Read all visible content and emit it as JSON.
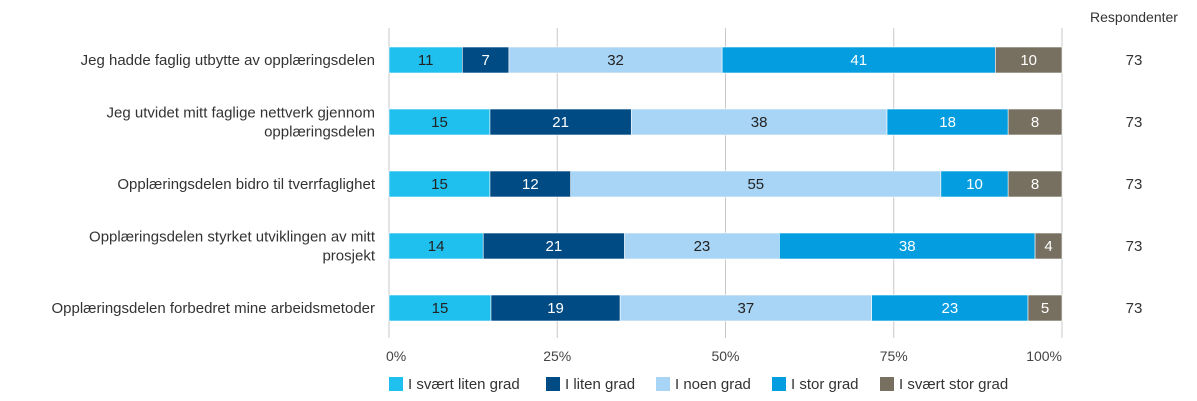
{
  "chart_data": {
    "type": "bar",
    "orientation": "horizontal",
    "stacked": true,
    "normalized_percent": true,
    "categories": [
      [
        "Jeg hadde faglig utbytte av opplæringsdelen"
      ],
      [
        "Jeg utvidet mitt faglige nettverk gjennom",
        "opplæringsdelen"
      ],
      [
        "Opplæringsdelen bidro til tverrfaglighet"
      ],
      [
        "Opplæringsdelen styrket utviklingen av mitt",
        "prosjekt"
      ],
      [
        "Opplæringsdelen forbedret mine arbeidsmetoder"
      ]
    ],
    "series": [
      {
        "name": "I svært liten grad",
        "color": "#1fbfee",
        "label_color": "#222222",
        "values": [
          11,
          15,
          15,
          14,
          15
        ]
      },
      {
        "name": "I liten grad",
        "color": "#004b84",
        "label_color": "#ffffff",
        "values": [
          7,
          21,
          12,
          21,
          19
        ]
      },
      {
        "name": "I noen grad",
        "color": "#a8d4f5",
        "label_color": "#222222",
        "values": [
          32,
          38,
          55,
          23,
          37
        ]
      },
      {
        "name": "I stor grad",
        "color": "#049ee0",
        "label_color": "#ffffff",
        "values": [
          41,
          18,
          10,
          38,
          23
        ]
      },
      {
        "name": "I svært stor grad",
        "color": "#777060",
        "label_color": "#ffffff",
        "values": [
          10,
          8,
          8,
          4,
          5
        ]
      }
    ],
    "xaxis": {
      "ticks": [
        "0%",
        "25%",
        "50%",
        "75%",
        "100%"
      ],
      "range": [
        0,
        100
      ]
    },
    "grid": true,
    "legend_position": "bottom",
    "respondents": {
      "label": "Respondenter",
      "values": [
        73,
        73,
        73,
        73,
        73
      ]
    }
  }
}
